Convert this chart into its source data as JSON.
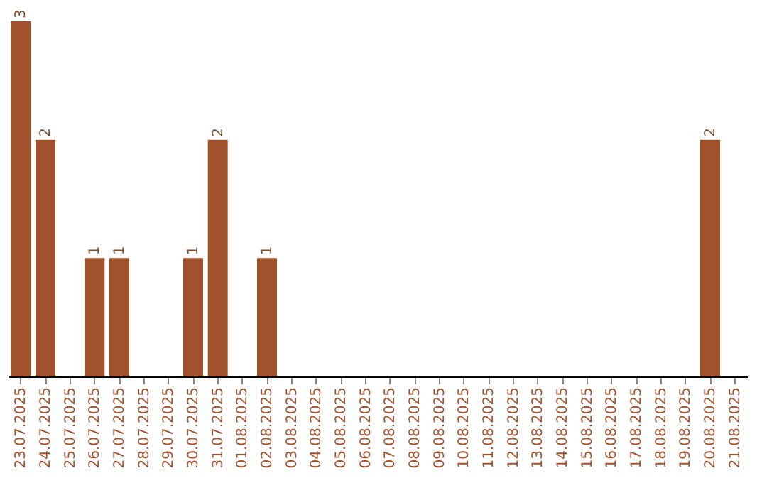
{
  "chart_data": {
    "type": "bar",
    "categories": [
      "23.07.2025",
      "24.07.2025",
      "25.07.2025",
      "26.07.2025",
      "27.07.2025",
      "28.07.2025",
      "29.07.2025",
      "30.07.2025",
      "31.07.2025",
      "01.08.2025",
      "02.08.2025",
      "03.08.2025",
      "04.08.2025",
      "05.08.2025",
      "06.08.2025",
      "07.08.2025",
      "08.08.2025",
      "09.08.2025",
      "10.08.2025",
      "11.08.2025",
      "12.08.2025",
      "13.08.2025",
      "14.08.2025",
      "15.08.2025",
      "16.08.2025",
      "17.08.2025",
      "18.08.2025",
      "19.08.2025",
      "20.08.2025",
      "21.08.2025"
    ],
    "values": [
      3,
      2,
      0,
      1,
      1,
      0,
      0,
      1,
      2,
      0,
      1,
      0,
      0,
      0,
      0,
      0,
      0,
      0,
      0,
      0,
      0,
      0,
      0,
      0,
      0,
      0,
      0,
      0,
      2,
      0
    ],
    "value_labels": [
      "3",
      "2",
      null,
      "1",
      "1",
      null,
      null,
      "1",
      "2",
      null,
      "1",
      null,
      null,
      null,
      null,
      null,
      null,
      null,
      null,
      null,
      null,
      null,
      null,
      null,
      null,
      null,
      null,
      null,
      "2",
      null
    ],
    "color": "#a0522d",
    "grid": false,
    "tick_labels": "x"
  }
}
